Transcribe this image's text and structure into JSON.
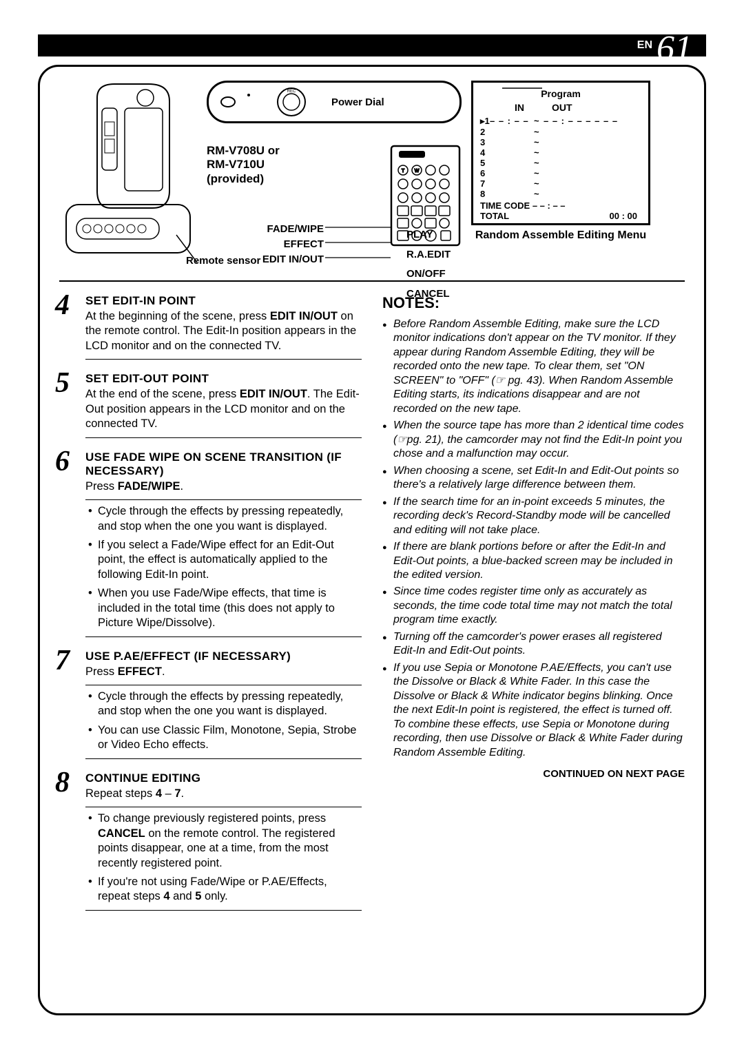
{
  "page": {
    "prefix": "EN",
    "number": "61"
  },
  "diagram": {
    "power_dial": "Power Dial",
    "remote_model": "RM-V708U or\nRM-V710U\n(provided)",
    "fade_wipe": "FADE/WIPE",
    "effect": "EFFECT",
    "edit_inout": "EDIT IN/OUT",
    "play": "PLAY",
    "ra_edit": "R.A.EDIT ON/OFF",
    "cancel": "CANCEL",
    "remote_sensor": "Remote sensor"
  },
  "menu": {
    "program": "Program",
    "in": "IN",
    "out": "OUT",
    "rows": [
      {
        "n": "1",
        "in": "– – : – –",
        "out": "– – : – –  – –  – –"
      },
      {
        "n": "2",
        "in": "",
        "out": ""
      },
      {
        "n": "3",
        "in": "",
        "out": ""
      },
      {
        "n": "4",
        "in": "",
        "out": ""
      },
      {
        "n": "5",
        "in": "",
        "out": ""
      },
      {
        "n": "6",
        "in": "",
        "out": ""
      },
      {
        "n": "7",
        "in": "",
        "out": ""
      },
      {
        "n": "8",
        "in": "",
        "out": ""
      }
    ],
    "timecode": "TIME CODE     – – : – –",
    "total_label": "TOTAL",
    "total_value": "00 : 00",
    "caption": "Random Assemble Editing Menu"
  },
  "steps": [
    {
      "n": "4",
      "title": "SET EDIT-IN POINT",
      "body": "At the beginning of the scene, press <b>EDIT IN/OUT</b> on the remote control. The Edit-In position appears in the LCD monitor and on the connected TV."
    },
    {
      "n": "5",
      "title": "SET EDIT-OUT POINT",
      "body": "At the end of the scene, press <b>EDIT IN/OUT</b>. The Edit-Out position appears in the LCD monitor and on the connected TV."
    },
    {
      "n": "6",
      "title": "USE FADE WIPE ON SCENE TRANSITION (IF NECESSARY)",
      "body": "Press <b>FADE/WIPE</b>.",
      "bullets": [
        "Cycle through the effects by pressing repeatedly, and stop when the one you want is displayed.",
        "If you select a Fade/Wipe effect for an Edit-Out point, the effect is automatically applied to the following Edit-In point.",
        "When you use Fade/Wipe effects, that time is included in the total time (this does not apply to Picture Wipe/Dissolve)."
      ]
    },
    {
      "n": "7",
      "title": "USE P.AE/EFFECT (IF NECESSARY)",
      "body": "Press <b>EFFECT</b>.",
      "bullets": [
        "Cycle through the effects by pressing repeatedly, and stop when the one you want is displayed.",
        "You can use Classic Film, Monotone, Sepia, Strobe or Video Echo effects."
      ]
    },
    {
      "n": "8",
      "title": "CONTINUE EDITING",
      "body": "Repeat steps <b>4</b> – <b>7</b>.",
      "bullets": [
        "To change previously registered points, press <b>CANCEL</b> on the remote control. The registered points disappear, one at a time, from the most recently registered point.",
        "If you're not using Fade/Wipe or P.AE/Effects, repeat steps <b>4</b> and <b>5</b> only."
      ]
    }
  ],
  "notes": {
    "title": "NOTES:",
    "items": [
      "Before Random Assemble Editing, make sure the LCD monitor indications don't appear on the TV monitor. If they appear during Random Assemble Editing, they will be recorded onto the new tape. To clear them, set \"ON SCREEN\" to \"OFF\" (☞ pg. 43). When Random Assemble Editing starts, its indications disappear and are not recorded on the new tape.",
      "When the source tape has more than 2 identical time codes (☞pg. 21), the camcorder may not find the Edit-In point you chose and a malfunction may occur.",
      "When choosing a scene, set Edit-In and Edit-Out points so there's a relatively large difference between them.",
      "If the search time for an in-point exceeds 5 minutes, the recording deck's Record-Standby mode will be cancelled and editing will not take place.",
      "If there are blank portions before or after the Edit-In and Edit-Out points, a blue-backed screen may be included in the edited version.",
      "Since time codes register time only as accurately as seconds, the time code total time may not match the total program time exactly.",
      "Turning off the camcorder's power erases all registered  Edit-In and Edit-Out points.",
      "If you use Sepia or Monotone P.AE/Effects, you can't use the Dissolve or Black & White Fader. In this case the Dissolve or Black & White indicator begins blinking. Once the next Edit-In point is registered, the effect is turned off. To combine these effects, use Sepia or Monotone during recording, then use Dissolve or Black & White Fader during Random Assemble Editing."
    ],
    "continued": "CONTINUED ON NEXT PAGE"
  },
  "colors": {
    "bg": "#ffffff",
    "ink": "#000000"
  }
}
